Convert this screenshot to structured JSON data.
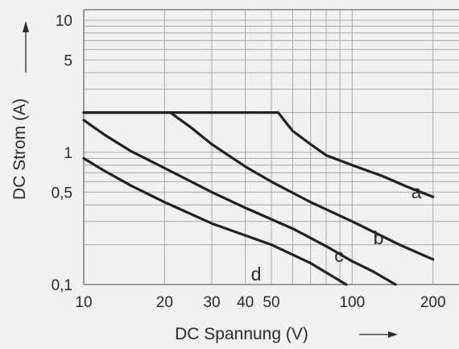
{
  "chart_data": {
    "type": "line",
    "title": "",
    "xlabel": "DC Spannung (V)",
    "ylabel": "DC Strom (A)",
    "xscale": "log",
    "yscale": "log",
    "xlim": [
      10,
      250
    ],
    "ylim": [
      0.1,
      12
    ],
    "x_ticks": [
      {
        "value": 10,
        "label": "10"
      },
      {
        "value": 20,
        "label": "20"
      },
      {
        "value": 30,
        "label": "30"
      },
      {
        "value": 40,
        "label": "40"
      },
      {
        "value": 50,
        "label": "50"
      },
      {
        "value": 100,
        "label": "100"
      },
      {
        "value": 200,
        "label": "200"
      }
    ],
    "y_ticks": [
      {
        "value": 0.1,
        "label": "0,1"
      },
      {
        "value": 0.5,
        "label": "0,5"
      },
      {
        "value": 1,
        "label": "1"
      },
      {
        "value": 5,
        "label": "5"
      },
      {
        "value": 10,
        "label": "10"
      }
    ],
    "grid": true,
    "colors": {
      "background": "#f1f1f1",
      "grid": "#a9a9a9",
      "lines": "#222222",
      "text": "#2a2a2a"
    },
    "series": [
      {
        "name": "a",
        "points": [
          [
            10,
            2
          ],
          [
            53,
            2
          ],
          [
            60,
            1.45
          ],
          [
            70,
            1.15
          ],
          [
            80,
            0.95
          ],
          [
            100,
            0.8
          ],
          [
            130,
            0.66
          ],
          [
            160,
            0.55
          ],
          [
            200,
            0.46
          ]
        ]
      },
      {
        "name": "b",
        "points": [
          [
            10,
            2
          ],
          [
            21,
            2
          ],
          [
            25,
            1.55
          ],
          [
            30,
            1.15
          ],
          [
            40,
            0.78
          ],
          [
            50,
            0.6
          ],
          [
            70,
            0.42
          ],
          [
            100,
            0.3
          ],
          [
            150,
            0.2
          ],
          [
            200,
            0.155
          ]
        ]
      },
      {
        "name": "c",
        "points": [
          [
            10,
            1.75
          ],
          [
            12,
            1.35
          ],
          [
            15,
            1.02
          ],
          [
            20,
            0.76
          ],
          [
            30,
            0.5
          ],
          [
            40,
            0.38
          ],
          [
            60,
            0.265
          ],
          [
            80,
            0.195
          ],
          [
            100,
            0.15
          ],
          [
            120,
            0.125
          ],
          [
            145,
            0.1
          ]
        ]
      },
      {
        "name": "d",
        "points": [
          [
            10,
            0.9
          ],
          [
            12,
            0.72
          ],
          [
            15,
            0.56
          ],
          [
            20,
            0.42
          ],
          [
            30,
            0.29
          ],
          [
            50,
            0.2
          ],
          [
            70,
            0.145
          ],
          [
            95,
            0.1
          ]
        ]
      }
    ]
  }
}
